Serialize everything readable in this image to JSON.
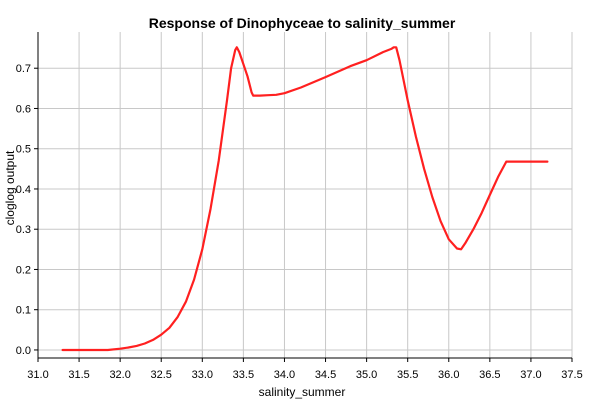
{
  "chart_data": {
    "type": "line",
    "title": "Response of Dinophyceae to salinity_summer",
    "xlabel": "salinity_summer",
    "ylabel": "cloglog output",
    "xlim": [
      31.0,
      37.5
    ],
    "ylim": [
      -0.02,
      0.79
    ],
    "xticks": [
      31.0,
      31.5,
      32.0,
      32.5,
      33.0,
      33.5,
      34.0,
      34.5,
      35.0,
      35.5,
      36.0,
      36.5,
      37.0,
      37.5
    ],
    "xtick_labels": [
      "31.0",
      "31.5",
      "32.0",
      "32.5",
      "33.0",
      "33.5",
      "34.0",
      "34.5",
      "35.0",
      "35.5",
      "36.0",
      "36.5",
      "37.0",
      "37.5"
    ],
    "yticks": [
      0.0,
      0.1,
      0.2,
      0.3,
      0.4,
      0.5,
      0.6,
      0.7
    ],
    "ytick_labels": [
      "0.0",
      "0.1",
      "0.2",
      "0.3",
      "0.4",
      "0.5",
      "0.6",
      "0.7"
    ],
    "grid": true,
    "line_color": "#ff2020",
    "series": [
      {
        "x": [
          31.3,
          31.5,
          31.7,
          31.85,
          32.0,
          32.1,
          32.2,
          32.3,
          32.4,
          32.5,
          32.6,
          32.7,
          32.8,
          32.9,
          33.0,
          33.1,
          33.2,
          33.3,
          33.35,
          33.4,
          33.42,
          33.45,
          33.5,
          33.55,
          33.6,
          33.62,
          33.65,
          33.7,
          33.8,
          33.9,
          34.0,
          34.2,
          34.5,
          34.8,
          35.0,
          35.2,
          35.3,
          35.33,
          35.36,
          35.4,
          35.5,
          35.6,
          35.7,
          35.8,
          35.9,
          36.0,
          36.1,
          36.15,
          36.2,
          36.3,
          36.4,
          36.5,
          36.6,
          36.7,
          36.75,
          36.8,
          37.0,
          37.2
        ],
        "y": [
          0.0,
          0.0,
          0.0,
          0.0,
          0.003,
          0.006,
          0.01,
          0.016,
          0.025,
          0.038,
          0.055,
          0.082,
          0.12,
          0.175,
          0.25,
          0.35,
          0.47,
          0.62,
          0.7,
          0.745,
          0.752,
          0.74,
          0.71,
          0.68,
          0.64,
          0.632,
          0.632,
          0.632,
          0.633,
          0.634,
          0.638,
          0.652,
          0.678,
          0.705,
          0.72,
          0.74,
          0.748,
          0.752,
          0.752,
          0.72,
          0.62,
          0.53,
          0.45,
          0.38,
          0.32,
          0.275,
          0.252,
          0.25,
          0.265,
          0.3,
          0.34,
          0.385,
          0.43,
          0.468,
          0.468,
          0.468,
          0.468,
          0.468
        ]
      }
    ]
  }
}
